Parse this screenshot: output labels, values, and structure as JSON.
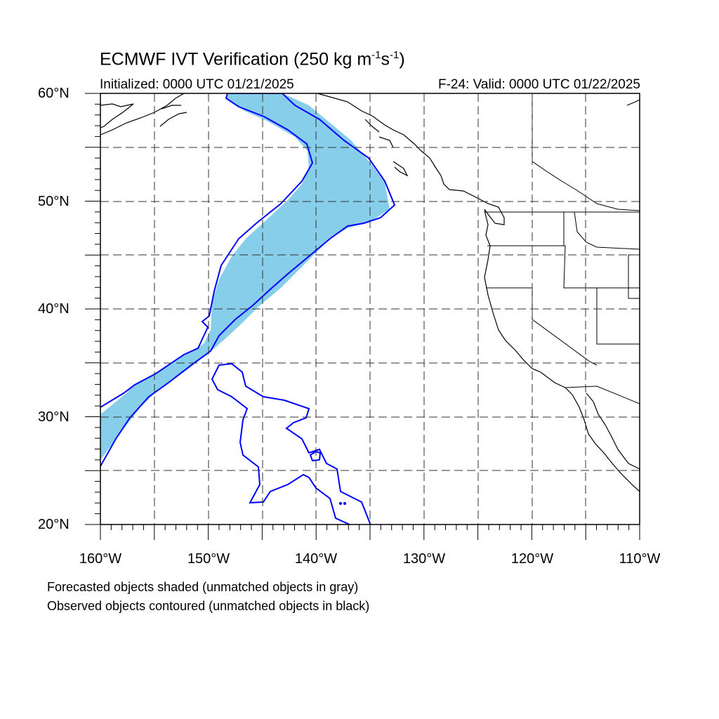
{
  "header": {
    "title_main": "ECMWF IVT Verification (250 kg m",
    "title_exp1": "-1",
    "title_mid": "s",
    "title_exp2": "-1",
    "title_end": ")",
    "initialized": "Initialized: 0000 UTC 01/21/2025",
    "valid": "F-24: Valid: 0000 UTC 01/22/2025"
  },
  "axes": {
    "lat_labels": [
      "60°N",
      "50°N",
      "40°N",
      "30°N",
      "20°N"
    ],
    "lon_labels": [
      "160°W",
      "150°W",
      "140°W",
      "130°W",
      "120°W",
      "110°W"
    ],
    "lat_range": [
      20,
      60
    ],
    "lon_range": [
      -160,
      -110
    ],
    "grid": true,
    "grid_style": "dashed",
    "grid_interval_deg": 5
  },
  "colors": {
    "forecast_fill": "#87ceeb",
    "observed_contour": "#0000ff",
    "coastline": "#000000",
    "grid": "#333333"
  },
  "notes": {
    "line1": "Forecasted objects shaded (unmatched objects in gray)",
    "line2": "Observed objects contoured (unmatched objects in black)"
  }
}
